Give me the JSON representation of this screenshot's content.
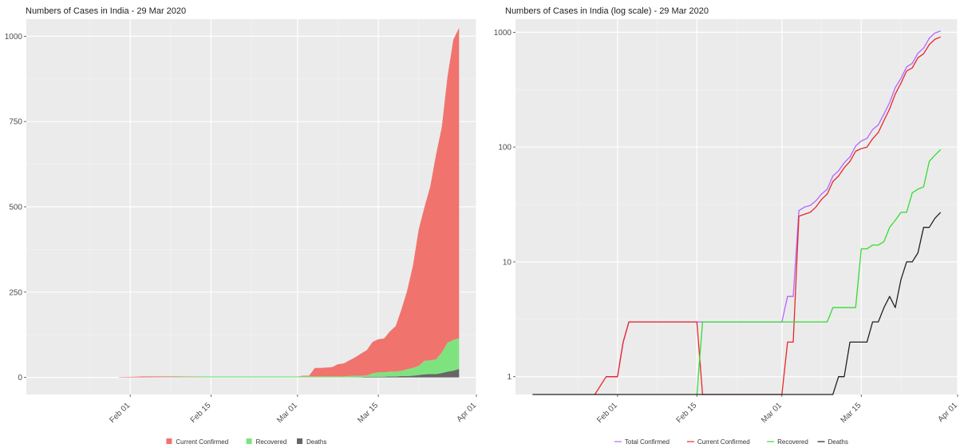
{
  "chart_data": [
    {
      "type": "area",
      "stacked": true,
      "title": "Numbers of Cases in India - 29 Mar 2020",
      "xlabel": "",
      "ylabel": "",
      "x_axis": {
        "type": "date",
        "range": [
          "2020-01-14",
          "2020-04-01"
        ],
        "ticks": [
          "2020-02-01",
          "2020-02-15",
          "2020-03-01",
          "2020-03-15",
          "2020-04-01"
        ],
        "tick_labels": [
          "Feb 01",
          "Feb 15",
          "Mar 01",
          "Mar 15",
          "Apr 01"
        ]
      },
      "ylim": [
        -50,
        1050
      ],
      "y_ticks": [
        0,
        250,
        500,
        750,
        1000
      ],
      "y_tick_labels": [
        "0",
        "250",
        "500",
        "750",
        "1000"
      ],
      "grid": true,
      "legend_position": "bottom",
      "x": [
        "2020-01-30",
        "2020-02-02",
        "2020-02-03",
        "2020-02-15",
        "2020-03-01",
        "2020-03-02",
        "2020-03-03",
        "2020-03-04",
        "2020-03-05",
        "2020-03-06",
        "2020-03-07",
        "2020-03-08",
        "2020-03-09",
        "2020-03-10",
        "2020-03-11",
        "2020-03-12",
        "2020-03-13",
        "2020-03-14",
        "2020-03-15",
        "2020-03-16",
        "2020-03-17",
        "2020-03-18",
        "2020-03-19",
        "2020-03-20",
        "2020-03-21",
        "2020-03-22",
        "2020-03-23",
        "2020-03-24",
        "2020-03-25",
        "2020-03-26",
        "2020-03-27",
        "2020-03-28",
        "2020-03-29"
      ],
      "series": [
        {
          "name": "Deaths",
          "color": "#666666",
          "values": [
            0,
            0,
            0,
            0,
            0,
            0,
            0,
            0,
            0,
            0,
            0,
            0,
            0,
            0,
            1,
            1,
            2,
            2,
            2,
            2,
            3,
            3,
            4,
            4,
            5,
            7,
            9,
            10,
            10,
            13,
            17,
            20,
            25
          ]
        },
        {
          "name": "Recovered",
          "color": "#7ee37e",
          "values": [
            0,
            0,
            0,
            3,
            3,
            3,
            3,
            3,
            3,
            3,
            3,
            3,
            3,
            4,
            4,
            4,
            4,
            10,
            13,
            13,
            14,
            14,
            15,
            20,
            23,
            27,
            40,
            40,
            43,
            60,
            85,
            90,
            90
          ]
        },
        {
          "name": "Current Confirmed",
          "color": "#f1736e",
          "values": [
            1,
            2,
            3,
            0,
            0,
            2,
            2,
            25,
            25,
            26,
            27,
            36,
            38,
            46,
            54,
            65,
            74,
            92,
            97,
            99,
            118,
            133,
            180,
            230,
            300,
            400,
            450,
            510,
            600,
            660,
            780,
            880,
            910
          ]
        }
      ],
      "legend": [
        "Current Confirmed",
        "Recovered",
        "Deaths"
      ]
    },
    {
      "type": "line",
      "title": "Numbers of Cases in India (log scale) - 29 Mar 2020",
      "xlabel": "",
      "ylabel": "",
      "y_scale": "log",
      "x_axis": {
        "type": "date",
        "range": [
          "2020-01-14",
          "2020-04-01"
        ],
        "ticks": [
          "2020-02-01",
          "2020-02-15",
          "2020-03-01",
          "2020-03-15",
          "2020-04-01"
        ],
        "tick_labels": [
          "Feb 01",
          "Feb 15",
          "Mar 01",
          "Mar 15",
          "Apr 01"
        ]
      },
      "ylim": [
        0.7,
        1300
      ],
      "y_ticks": [
        1,
        10,
        100,
        1000
      ],
      "y_tick_labels": [
        "1",
        "10",
        "100",
        "1000"
      ],
      "grid": true,
      "legend_position": "bottom",
      "series": [
        {
          "name": "Total Confirmed",
          "color": "#b266ff",
          "points": [
            [
              "2020-01-30",
              1
            ],
            [
              "2020-01-31",
              1
            ],
            [
              "2020-02-01",
              1
            ],
            [
              "2020-02-02",
              2
            ],
            [
              "2020-02-03",
              3
            ],
            [
              "2020-02-16",
              3
            ],
            [
              "2020-03-01",
              3
            ],
            [
              "2020-03-02",
              5
            ],
            [
              "2020-03-03",
              5
            ],
            [
              "2020-03-04",
              28
            ],
            [
              "2020-03-05",
              30
            ],
            [
              "2020-03-06",
              31
            ],
            [
              "2020-03-07",
              34
            ],
            [
              "2020-03-08",
              39
            ],
            [
              "2020-03-09",
              43
            ],
            [
              "2020-03-10",
              56
            ],
            [
              "2020-03-11",
              62
            ],
            [
              "2020-03-12",
              73
            ],
            [
              "2020-03-13",
              82
            ],
            [
              "2020-03-14",
              102
            ],
            [
              "2020-03-15",
              113
            ],
            [
              "2020-03-16",
              119
            ],
            [
              "2020-03-17",
              142
            ],
            [
              "2020-03-18",
              156
            ],
            [
              "2020-03-19",
              194
            ],
            [
              "2020-03-20",
              244
            ],
            [
              "2020-03-21",
              330
            ],
            [
              "2020-03-22",
              396
            ],
            [
              "2020-03-23",
              499
            ],
            [
              "2020-03-24",
              536
            ],
            [
              "2020-03-25",
              657
            ],
            [
              "2020-03-26",
              727
            ],
            [
              "2020-03-27",
              887
            ],
            [
              "2020-03-28",
              987
            ],
            [
              "2020-03-29",
              1024
            ]
          ]
        },
        {
          "name": "Current Confirmed",
          "color": "#e8262b",
          "points": [
            [
              "2020-01-28",
              0.7
            ],
            [
              "2020-01-30",
              1
            ],
            [
              "2020-01-31",
              1
            ],
            [
              "2020-02-01",
              1
            ],
            [
              "2020-02-02",
              2
            ],
            [
              "2020-02-03",
              3
            ],
            [
              "2020-02-15",
              3
            ],
            [
              "2020-02-16",
              0.7
            ],
            [
              "2020-03-01",
              0.7
            ],
            [
              "2020-03-02",
              2
            ],
            [
              "2020-03-03",
              2
            ],
            [
              "2020-03-04",
              25
            ],
            [
              "2020-03-05",
              26
            ],
            [
              "2020-03-06",
              27
            ],
            [
              "2020-03-07",
              30
            ],
            [
              "2020-03-08",
              35
            ],
            [
              "2020-03-09",
              39
            ],
            [
              "2020-03-10",
              50
            ],
            [
              "2020-03-11",
              56
            ],
            [
              "2020-03-12",
              66
            ],
            [
              "2020-03-13",
              75
            ],
            [
              "2020-03-14",
              92
            ],
            [
              "2020-03-15",
              97
            ],
            [
              "2020-03-16",
              100
            ],
            [
              "2020-03-17",
              118
            ],
            [
              "2020-03-18",
              134
            ],
            [
              "2020-03-19",
              170
            ],
            [
              "2020-03-20",
              215
            ],
            [
              "2020-03-21",
              290
            ],
            [
              "2020-03-22",
              360
            ],
            [
              "2020-03-23",
              460
            ],
            [
              "2020-03-24",
              490
            ],
            [
              "2020-03-25",
              600
            ],
            [
              "2020-03-26",
              650
            ],
            [
              "2020-03-27",
              780
            ],
            [
              "2020-03-28",
              870
            ],
            [
              "2020-03-29",
              910
            ]
          ]
        },
        {
          "name": "Recovered",
          "color": "#33dd33",
          "points": [
            [
              "2020-02-15",
              0.7
            ],
            [
              "2020-02-16",
              3
            ],
            [
              "2020-03-09",
              3
            ],
            [
              "2020-03-10",
              4
            ],
            [
              "2020-03-14",
              4
            ],
            [
              "2020-03-15",
              13
            ],
            [
              "2020-03-16",
              13
            ],
            [
              "2020-03-17",
              14
            ],
            [
              "2020-03-18",
              14
            ],
            [
              "2020-03-19",
              15
            ],
            [
              "2020-03-20",
              20
            ],
            [
              "2020-03-21",
              23
            ],
            [
              "2020-03-22",
              27
            ],
            [
              "2020-03-23",
              27
            ],
            [
              "2020-03-24",
              40
            ],
            [
              "2020-03-25",
              43
            ],
            [
              "2020-03-26",
              45
            ],
            [
              "2020-03-27",
              75
            ],
            [
              "2020-03-28",
              85
            ],
            [
              "2020-03-29",
              95
            ]
          ]
        },
        {
          "name": "Deaths",
          "color": "#222222",
          "points": [
            [
              "2020-01-17",
              0.7
            ],
            [
              "2020-03-10",
              0.7
            ],
            [
              "2020-03-11",
              1
            ],
            [
              "2020-03-12",
              1
            ],
            [
              "2020-03-13",
              2
            ],
            [
              "2020-03-14",
              2
            ],
            [
              "2020-03-15",
              2
            ],
            [
              "2020-03-16",
              2
            ],
            [
              "2020-03-17",
              3
            ],
            [
              "2020-03-18",
              3
            ],
            [
              "2020-03-19",
              4
            ],
            [
              "2020-03-20",
              5
            ],
            [
              "2020-03-21",
              4
            ],
            [
              "2020-03-22",
              7
            ],
            [
              "2020-03-23",
              10
            ],
            [
              "2020-03-24",
              10
            ],
            [
              "2020-03-25",
              12
            ],
            [
              "2020-03-26",
              20
            ],
            [
              "2020-03-27",
              20
            ],
            [
              "2020-03-28",
              24
            ],
            [
              "2020-03-29",
              27
            ]
          ]
        }
      ],
      "legend": [
        "Total Confirmed",
        "Current Confirmed",
        "Recovered",
        "Deaths"
      ]
    }
  ]
}
